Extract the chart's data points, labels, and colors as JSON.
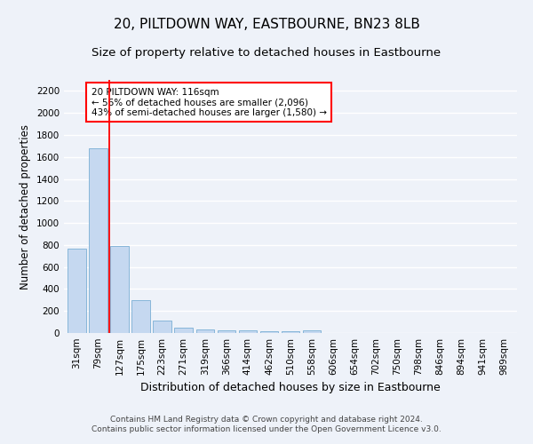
{
  "title": "20, PILTDOWN WAY, EASTBOURNE, BN23 8LB",
  "subtitle": "Size of property relative to detached houses in Eastbourne",
  "xlabel": "Distribution of detached houses by size in Eastbourne",
  "ylabel": "Number of detached properties",
  "footer_line1": "Contains HM Land Registry data © Crown copyright and database right 2024.",
  "footer_line2": "Contains public sector information licensed under the Open Government Licence v3.0.",
  "categories": [
    "31sqm",
    "79sqm",
    "127sqm",
    "175sqm",
    "223sqm",
    "271sqm",
    "319sqm",
    "366sqm",
    "414sqm",
    "462sqm",
    "510sqm",
    "558sqm",
    "606sqm",
    "654sqm",
    "702sqm",
    "750sqm",
    "798sqm",
    "846sqm",
    "894sqm",
    "941sqm",
    "989sqm"
  ],
  "values": [
    770,
    1680,
    790,
    300,
    110,
    45,
    32,
    27,
    22,
    20,
    15,
    25,
    0,
    0,
    0,
    0,
    0,
    0,
    0,
    0,
    0
  ],
  "bar_color": "#c5d8f0",
  "bar_edge_color": "#7aafd4",
  "vline_color": "red",
  "vline_position": 1.5,
  "annotation_text": "20 PILTDOWN WAY: 116sqm\n← 56% of detached houses are smaller (2,096)\n43% of semi-detached houses are larger (1,580) →",
  "annotation_box_color": "white",
  "annotation_box_edge_color": "red",
  "ylim": [
    0,
    2300
  ],
  "yticks": [
    0,
    200,
    400,
    600,
    800,
    1000,
    1200,
    1400,
    1600,
    1800,
    2000,
    2200
  ],
  "background_color": "#eef2f9",
  "grid_color": "white",
  "title_fontsize": 11,
  "subtitle_fontsize": 9.5,
  "axis_label_fontsize": 8.5,
  "tick_fontsize": 7.5,
  "annotation_fontsize": 7.5,
  "footer_fontsize": 6.5
}
